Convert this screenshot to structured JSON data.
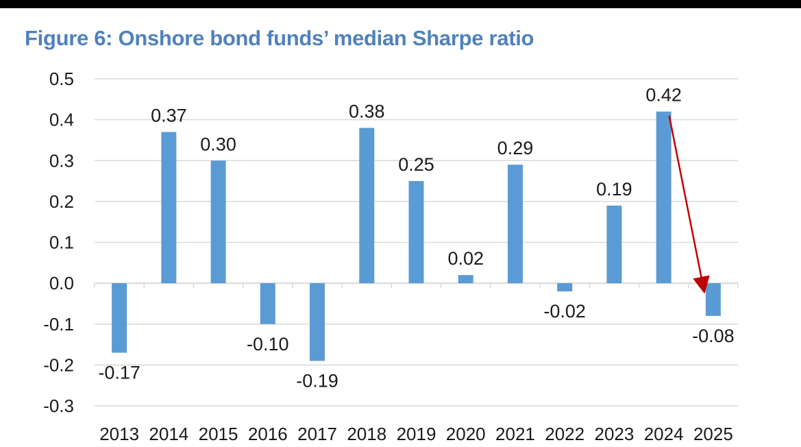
{
  "figure": {
    "title": "Figure 6: Onshore bond funds’ median Sharpe ratio"
  },
  "colors": {
    "title": "#4f81bd",
    "bar": "#5b9bd5",
    "grid": "#d9d9d9",
    "annotation_arrow": "#c00000"
  },
  "chart_data": {
    "type": "bar",
    "title": "Figure 6: Onshore bond funds’ median Sharpe ratio",
    "xlabel": "",
    "ylabel": "",
    "categories": [
      "2013",
      "2014",
      "2015",
      "2016",
      "2017",
      "2018",
      "2019",
      "2020",
      "2021",
      "2022",
      "2023",
      "2024",
      "2025"
    ],
    "values": [
      -0.17,
      0.37,
      0.3,
      -0.1,
      -0.19,
      0.38,
      0.25,
      0.02,
      0.29,
      -0.02,
      0.19,
      0.42,
      -0.08
    ],
    "data_labels": [
      "-0.17",
      "0.37",
      "0.30",
      "-0.10",
      "-0.19",
      "0.38",
      "0.25",
      "0.02",
      "0.29",
      "-0.02",
      "0.19",
      "0.42",
      "-0.08"
    ],
    "ylim": [
      -0.3,
      0.5
    ],
    "yticks": [
      0.5,
      0.4,
      0.3,
      0.2,
      0.1,
      0.0,
      -0.1,
      -0.2,
      -0.3
    ],
    "ytick_labels": [
      "0.5",
      "0.4",
      "0.3",
      "0.2",
      "0.1",
      "0.0",
      "-0.1",
      "-0.2",
      "-0.3"
    ],
    "grid": true,
    "legend": "none",
    "annotations": [
      {
        "type": "arrow",
        "from_category": "2024",
        "from_value": 0.42,
        "to_category": "2025",
        "to_value": 0.0
      }
    ]
  }
}
